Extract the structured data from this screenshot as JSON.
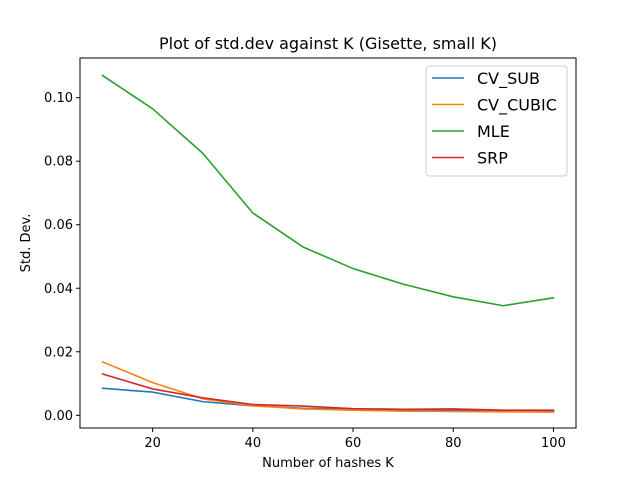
{
  "chart_data": {
    "type": "line",
    "title": "Plot of std.dev against K (Gisette, small K)",
    "xlabel": "Number of hashes K",
    "ylabel": "Std. Dev.",
    "x": [
      10,
      20,
      30,
      40,
      50,
      60,
      70,
      80,
      90,
      100
    ],
    "xlim": [
      5.5,
      104.5
    ],
    "ylim": [
      -0.004,
      0.1125
    ],
    "xticks": [
      20,
      40,
      60,
      80,
      100
    ],
    "yticks": [
      0.0,
      0.02,
      0.04,
      0.06,
      0.08,
      0.1
    ],
    "xtick_labels": [
      "20",
      "40",
      "60",
      "80",
      "100"
    ],
    "ytick_labels": [
      "0.00",
      "0.02",
      "0.04",
      "0.06",
      "0.08",
      "0.10"
    ],
    "grid": false,
    "legend_position": "top-right",
    "series": [
      {
        "name": "CV_SUB",
        "color": "#1f77b4",
        "values": [
          0.0085,
          0.0073,
          0.0043,
          0.003,
          0.0022,
          0.0019,
          0.0016,
          0.0016,
          0.0013,
          0.0013
        ]
      },
      {
        "name": "CV_CUBIC",
        "color": "#ff7f0e",
        "values": [
          0.0168,
          0.0103,
          0.0052,
          0.003,
          0.002,
          0.0016,
          0.0013,
          0.0012,
          0.0011,
          0.001
        ]
      },
      {
        "name": "MLE",
        "color": "#2ca02c",
        "values": [
          0.107,
          0.0965,
          0.0825,
          0.0637,
          0.053,
          0.0462,
          0.0413,
          0.0373,
          0.0345,
          0.037
        ]
      },
      {
        "name": "SRP",
        "color": "#d62728",
        "values": [
          0.013,
          0.0083,
          0.0055,
          0.0034,
          0.0029,
          0.0021,
          0.0019,
          0.002,
          0.0016,
          0.0016
        ]
      }
    ]
  }
}
